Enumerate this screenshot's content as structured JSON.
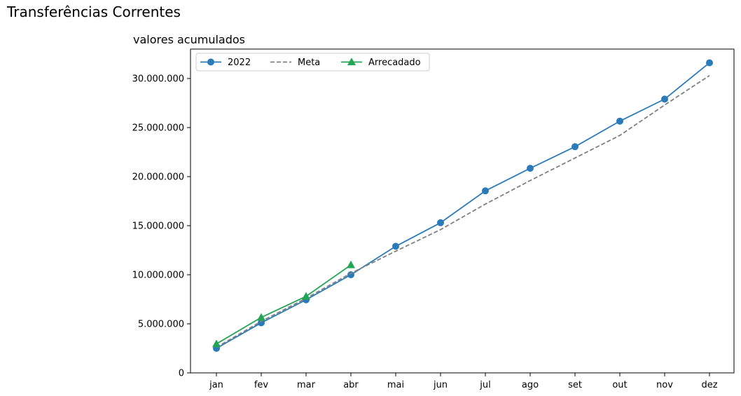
{
  "suptitle": "Transferências Correntes",
  "chart_data": {
    "type": "line",
    "title": "valores acumulados",
    "xlabel": "",
    "ylabel": "",
    "categories": [
      "jan",
      "fev",
      "mar",
      "abr",
      "mai",
      "jun",
      "jul",
      "ago",
      "set",
      "out",
      "nov",
      "dez"
    ],
    "ylim": [
      0,
      33000000
    ],
    "yticks": [
      0,
      5000000,
      10000000,
      15000000,
      20000000,
      25000000,
      30000000
    ],
    "ytick_labels": [
      "0",
      "5.000.000",
      "10.000.000",
      "15.000.000",
      "20.000.000",
      "25.000.000",
      "30.000.000"
    ],
    "grid": false,
    "legend_position": "top-left",
    "series": [
      {
        "name": "2022",
        "color": "#2b7bb9",
        "style": "solid",
        "marker": "circle",
        "values": [
          2500000,
          5100000,
          7450000,
          10000000,
          12900000,
          15300000,
          18550000,
          20850000,
          23050000,
          25650000,
          27900000,
          31600000
        ]
      },
      {
        "name": "Meta",
        "color": "#808080",
        "style": "dashed",
        "marker": "none",
        "values": [
          2600000,
          5250000,
          7600000,
          10150000,
          12400000,
          14600000,
          17200000,
          19600000,
          21900000,
          24200000,
          27300000,
          30300000
        ]
      },
      {
        "name": "Arrecadado",
        "color": "#22a655",
        "style": "solid",
        "marker": "triangle",
        "values": [
          2950000,
          5650000,
          7800000,
          11000000,
          null,
          null,
          null,
          null,
          null,
          null,
          null,
          null
        ]
      }
    ]
  }
}
